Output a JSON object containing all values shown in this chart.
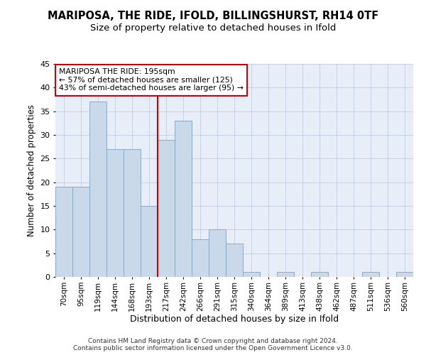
{
  "title": "MARIPOSA, THE RIDE, IFOLD, BILLINGSHURST, RH14 0TF",
  "subtitle": "Size of property relative to detached houses in Ifold",
  "xlabel": "Distribution of detached houses by size in Ifold",
  "ylabel": "Number of detached properties",
  "categories": [
    "70sqm",
    "95sqm",
    "119sqm",
    "144sqm",
    "168sqm",
    "193sqm",
    "217sqm",
    "242sqm",
    "266sqm",
    "291sqm",
    "315sqm",
    "340sqm",
    "364sqm",
    "389sqm",
    "413sqm",
    "438sqm",
    "462sqm",
    "487sqm",
    "511sqm",
    "536sqm",
    "560sqm"
  ],
  "values": [
    19,
    19,
    37,
    27,
    27,
    15,
    29,
    33,
    8,
    10,
    7,
    1,
    0,
    1,
    0,
    1,
    0,
    0,
    1,
    0,
    1
  ],
  "bar_color": "#c9d9ea",
  "bar_edgecolor": "#8aaac8",
  "vline_x_index": 5,
  "vline_color": "#cc0000",
  "annotation_text": "MARIPOSA THE RIDE: 195sqm\n← 57% of detached houses are smaller (125)\n43% of semi-detached houses are larger (95) →",
  "annotation_box_color": "#cc0000",
  "ylim": [
    0,
    45
  ],
  "yticks": [
    0,
    5,
    10,
    15,
    20,
    25,
    30,
    35,
    40,
    45
  ],
  "grid_color": "#c0cce0",
  "background_color": "#e8eef8",
  "title_fontsize": 10.5,
  "subtitle_fontsize": 9.5,
  "footer": "Contains HM Land Registry data © Crown copyright and database right 2024.\nContains public sector information licensed under the Open Government Licence v3.0."
}
